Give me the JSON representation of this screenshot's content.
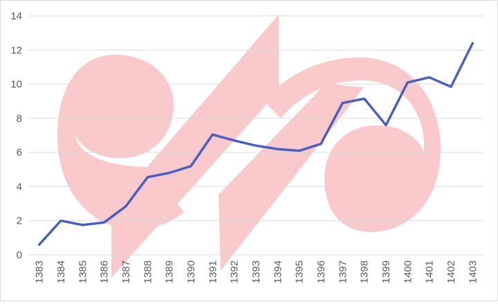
{
  "colors": {
    "line": "#4a5fc1",
    "grid": "#d9d9d9",
    "watermark": "#f9c9cc",
    "tick_text": "#595959",
    "background": "#ffffff"
  },
  "chart_data": {
    "type": "line",
    "title": "",
    "xlabel": "",
    "ylabel": "",
    "ylim": [
      0,
      14
    ],
    "yticks": [
      0,
      2,
      4,
      6,
      8,
      10,
      12,
      14
    ],
    "grid": true,
    "legend": "none",
    "categories": [
      "1383",
      "1384",
      "1385",
      "1386",
      "1387",
      "1388",
      "1389",
      "1390",
      "1391",
      "1392",
      "1393",
      "1394",
      "1395",
      "1396",
      "1397",
      "1398",
      "1399",
      "1400",
      "1401",
      "1402",
      "1403"
    ],
    "series": [
      {
        "values": [
          0.6,
          2.0,
          1.75,
          1.9,
          2.85,
          4.55,
          4.8,
          5.2,
          7.05,
          6.7,
          6.4,
          6.2,
          6.1,
          6.5,
          8.9,
          9.15,
          7.6,
          10.1,
          10.4,
          9.85,
          12.4
        ]
      }
    ]
  },
  "watermark": {
    "type": "logo",
    "icon": "red-crescent-emblem"
  }
}
